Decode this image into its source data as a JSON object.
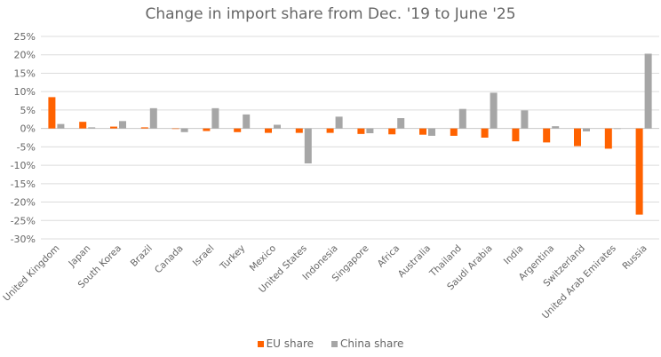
{
  "chart_data": {
    "type": "bar",
    "title": "Change in import share from Dec. '19 to June '25",
    "xlabel": "",
    "ylabel": "",
    "ylim": [
      -30,
      25
    ],
    "yticks": [
      25,
      20,
      15,
      10,
      5,
      0,
      -5,
      -10,
      -15,
      -20,
      -25,
      -30
    ],
    "ytick_format": "%",
    "grid": true,
    "legend_position": "bottom",
    "categories": [
      "United Kingdom",
      "Japan",
      "South Korea",
      "Brazil",
      "Canada",
      "Israel",
      "Turkey",
      "Mexico",
      "United States",
      "Indonesia",
      "Singapore",
      "Africa",
      "Australia",
      "Thailand",
      "Saudi Arabia",
      "India",
      "Argentina",
      "Switzerland",
      "United Arab Emirates",
      "Russia"
    ],
    "series": [
      {
        "name": "EU share",
        "color": "#ff6200",
        "values": [
          8.5,
          1.8,
          0.5,
          0.3,
          0.0,
          -0.7,
          -1.0,
          -1.2,
          -1.2,
          -1.2,
          -1.5,
          -1.6,
          -1.7,
          -2.0,
          -2.5,
          -3.5,
          -3.8,
          -4.8,
          -5.5,
          -23.4
        ]
      },
      {
        "name": "China share",
        "color": "#a6a6a6",
        "values": [
          1.2,
          0.3,
          2.0,
          5.5,
          -1.0,
          5.5,
          3.8,
          1.0,
          -9.5,
          3.2,
          -1.3,
          2.8,
          -2.0,
          5.3,
          9.7,
          4.9,
          0.6,
          -0.8,
          0.0,
          20.3
        ]
      }
    ]
  }
}
